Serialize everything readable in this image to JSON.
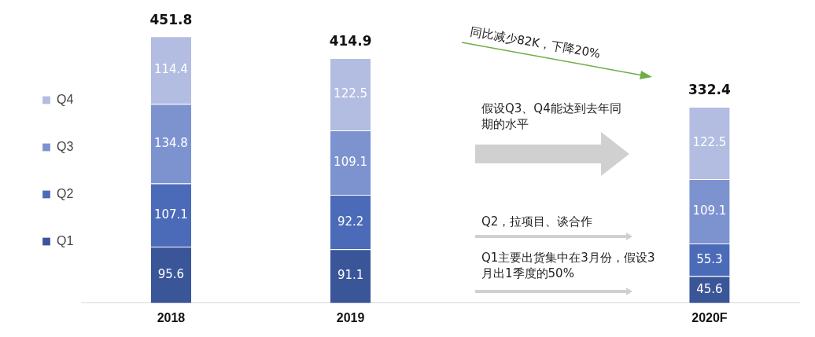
{
  "chart_data": {
    "type": "bar",
    "stacked": true,
    "categories": [
      "2018",
      "2019",
      null,
      "2020F"
    ],
    "series": [
      {
        "name": "Q1",
        "color": "#3a5699",
        "values": [
          95.6,
          91.1,
          null,
          45.6
        ]
      },
      {
        "name": "Q2",
        "color": "#4b6bb8",
        "values": [
          107.1,
          92.2,
          null,
          55.3
        ]
      },
      {
        "name": "Q3",
        "color": "#7d93d0",
        "values": [
          134.8,
          109.1,
          null,
          109.1
        ]
      },
      {
        "name": "Q4",
        "color": "#b3bde2",
        "values": [
          114.4,
          122.5,
          null,
          122.5
        ]
      }
    ],
    "totals": [
      "451.8",
      "414.9",
      null,
      "332.4"
    ],
    "data_labels": true,
    "tick_labels": "x",
    "grid": false,
    "legend": "left",
    "annotations": [
      "同比减少82K，下降20%",
      "假设Q3、Q4能达到去年同期的水平",
      "Q2，拉项目、谈合作",
      "Q1主要出货集中在3月份，假设3月出1季度的50%"
    ]
  }
}
